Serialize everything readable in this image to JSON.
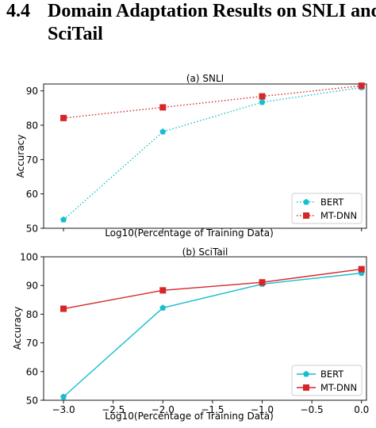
{
  "section": {
    "number": "4.4",
    "title_line1": "Domain Adaptation Results on SNLI and",
    "title_line2": "SciTail"
  },
  "colors": {
    "bert": "#17becf",
    "mtdnn": "#d62728"
  },
  "chart_data": [
    {
      "type": "line",
      "title": "(a) SNLI",
      "xlabel": "Log10(Percentage of Training Data)",
      "ylabel": "Accuracy",
      "x": [
        -3.0,
        -2.0,
        -1.0,
        0.0
      ],
      "xlim": [
        -3.2,
        0.05
      ],
      "ylim": [
        50,
        92
      ],
      "yticks": [
        50,
        60,
        70,
        80,
        90
      ],
      "xticks_shown": false,
      "line_style": "dotted",
      "legend_position": "lower-right",
      "series": [
        {
          "name": "BERT",
          "values": [
            52.5,
            78.1,
            86.7,
            91.0
          ],
          "marker": "pentagon"
        },
        {
          "name": "MT-DNN",
          "values": [
            82.1,
            85.2,
            88.4,
            91.5
          ],
          "marker": "square"
        }
      ]
    },
    {
      "type": "line",
      "title": "(b) SciTail",
      "xlabel": "Log10(Percentage of Training Data)",
      "ylabel": "Accuracy",
      "x": [
        -3.0,
        -2.0,
        -1.0,
        0.0
      ],
      "xlim": [
        -3.2,
        0.05
      ],
      "ylim": [
        50,
        100
      ],
      "yticks": [
        50,
        60,
        70,
        80,
        90,
        100
      ],
      "xticks": [
        -3.0,
        -2.5,
        -2.0,
        -1.5,
        -1.0,
        -0.5,
        0.0
      ],
      "xtick_labels": [
        "−3.0",
        "−2.5",
        "−2.0",
        "−1.5",
        "−1.0",
        "−0.5",
        "0.0"
      ],
      "xticks_shown": true,
      "line_style": "solid",
      "legend_position": "lower-right",
      "series": [
        {
          "name": "BERT",
          "values": [
            51.2,
            82.2,
            90.5,
            94.3
          ],
          "marker": "pentagon"
        },
        {
          "name": "MT-DNN",
          "values": [
            81.9,
            88.3,
            91.1,
            95.7
          ],
          "marker": "square"
        }
      ]
    }
  ]
}
